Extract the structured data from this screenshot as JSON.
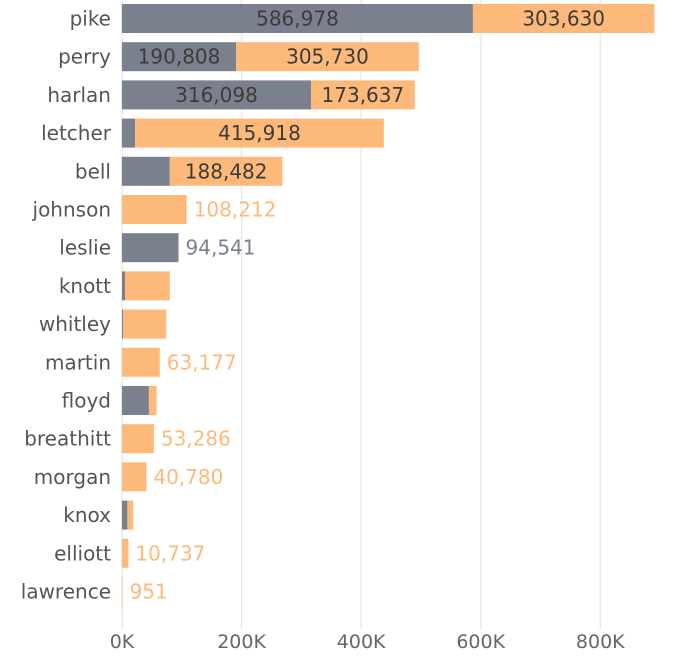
{
  "chart_data": {
    "type": "bar",
    "orientation": "horizontal",
    "stacked": true,
    "categories": [
      "pike",
      "perry",
      "harlan",
      "letcher",
      "bell",
      "johnson",
      "leslie",
      "knott",
      "whitley",
      "martin",
      "floyd",
      "breathitt",
      "morgan",
      "knox",
      "elliott",
      "lawrence"
    ],
    "series": [
      {
        "color": "#7a808e",
        "values": [
          586978,
          190808,
          316098,
          22000,
          80000,
          0,
          94541,
          5000,
          2000,
          0,
          45000,
          0,
          0,
          9000,
          0,
          0
        ],
        "labels": [
          "586,978",
          "190,808",
          "316,098",
          "",
          "",
          "",
          "94,541",
          "",
          "",
          "",
          "",
          "",
          "",
          "",
          "",
          ""
        ]
      },
      {
        "color": "#fdb97a",
        "values": [
          303630,
          305730,
          173637,
          415918,
          188482,
          108212,
          0,
          75000,
          72000,
          63177,
          13000,
          53286,
          40780,
          10000,
          10737,
          951
        ],
        "labels": [
          "303,630",
          "305,730",
          "173,637",
          "415,918",
          "188,482",
          "108,212",
          "",
          "",
          "",
          "63,177",
          "",
          "53,286",
          "40,780",
          "",
          "10,737",
          "951"
        ]
      }
    ],
    "xlim": [
      0,
      930000
    ],
    "xticks": [
      0,
      200000,
      400000,
      600000,
      800000
    ],
    "xtick_labels": [
      "0K",
      "200K",
      "400K",
      "600K",
      "800K"
    ],
    "grid": true,
    "legend": "none",
    "inside_label_color": "#3b3b3b",
    "outside_label_colors": [
      "#7a808e",
      "#fdb97a"
    ]
  }
}
